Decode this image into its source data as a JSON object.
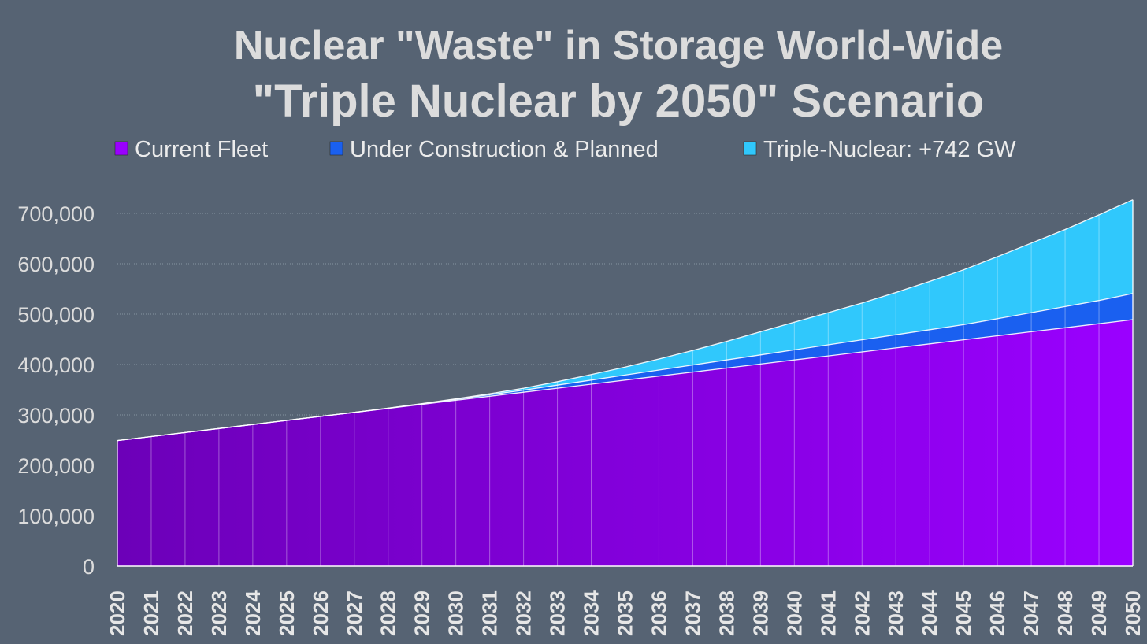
{
  "chart_data": {
    "type": "area",
    "stacked": true,
    "title": "Nuclear \"Waste\" in Storage World-Wide",
    "subtitle": "\"Triple Nuclear by 2050\" Scenario",
    "xlabel": "",
    "ylabel": "",
    "ylim": [
      0,
      700000
    ],
    "yticks": [
      0,
      100000,
      200000,
      300000,
      400000,
      500000,
      600000,
      700000
    ],
    "ytick_labels": [
      "0",
      "100,000",
      "200,000",
      "300,000",
      "400,000",
      "500,000",
      "600,000",
      "700,000"
    ],
    "grid": true,
    "legend_position": "top",
    "x": [
      "2020",
      "2021",
      "2022",
      "2023",
      "2024",
      "2025",
      "2026",
      "2027",
      "2028",
      "2029",
      "2030",
      "2031",
      "2032",
      "2033",
      "2034",
      "2035",
      "2036",
      "2037",
      "2038",
      "2039",
      "2040",
      "2041",
      "2042",
      "2043",
      "2044",
      "2045",
      "2046",
      "2047",
      "2048",
      "2049",
      "2050"
    ],
    "series": [
      {
        "name": "Current Fleet",
        "color": "#9a00ff",
        "color_dark": "#6c00b8",
        "values": [
          249000,
          257000,
          265000,
          273000,
          281000,
          289000,
          297000,
          305000,
          313000,
          321000,
          329000,
          337000,
          345000,
          353000,
          361000,
          369000,
          377000,
          385000,
          393000,
          401000,
          409000,
          417000,
          425000,
          433000,
          441000,
          449000,
          457000,
          465000,
          473000,
          481000,
          489000
        ]
      },
      {
        "name": "Under Construction & Planned",
        "color": "#1a60f0",
        "values": [
          0,
          0,
          0,
          0,
          0,
          0,
          0,
          0,
          500,
          1000,
          2000,
          3000,
          4000,
          6000,
          8000,
          10000,
          12000,
          14000,
          16000,
          18000,
          20000,
          22000,
          24000,
          26000,
          28000,
          30000,
          34000,
          38000,
          42000,
          46000,
          52000
        ]
      },
      {
        "name": "Triple-Nuclear: +742 GW",
        "color": "#30c8fc",
        "values": [
          0,
          0,
          0,
          0,
          0,
          0,
          0,
          0,
          0,
          500,
          1000,
          2000,
          4000,
          7000,
          11000,
          16000,
          22000,
          29000,
          37000,
          46000,
          55000,
          64000,
          73000,
          84000,
          96000,
          109000,
          123000,
          138000,
          153000,
          170000,
          186000
        ]
      }
    ]
  }
}
